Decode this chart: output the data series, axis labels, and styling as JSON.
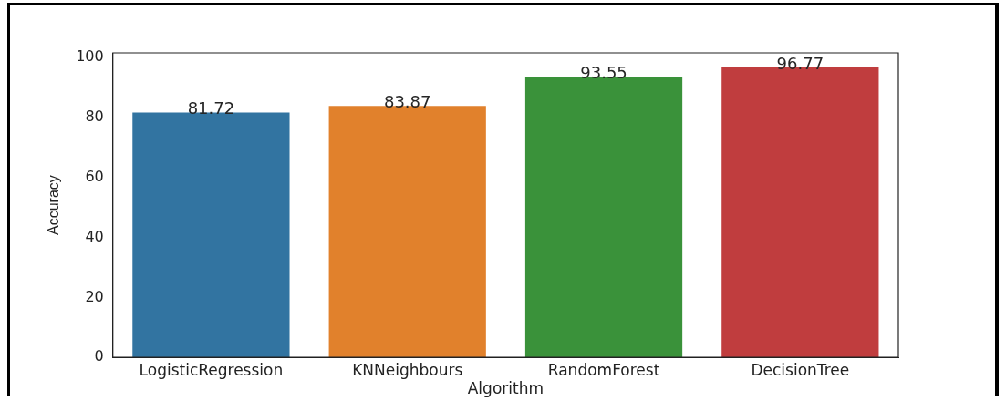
{
  "chart_data": {
    "type": "bar",
    "xlabel": "Algorithm",
    "ylabel": "Accuracy",
    "categories": [
      "LogisticRegression",
      "KNNeighbours",
      "RandomForest",
      "DecisionTree"
    ],
    "values": [
      81.72,
      83.87,
      93.55,
      96.77
    ],
    "colors": [
      "#3274a1",
      "#e1812c",
      "#3a923a",
      "#c03d3e"
    ],
    "ylim": [
      0,
      101.6
    ],
    "yticks": [
      0,
      20,
      40,
      60,
      80,
      100
    ],
    "data_labels": true,
    "grid": false,
    "legend": false
  }
}
